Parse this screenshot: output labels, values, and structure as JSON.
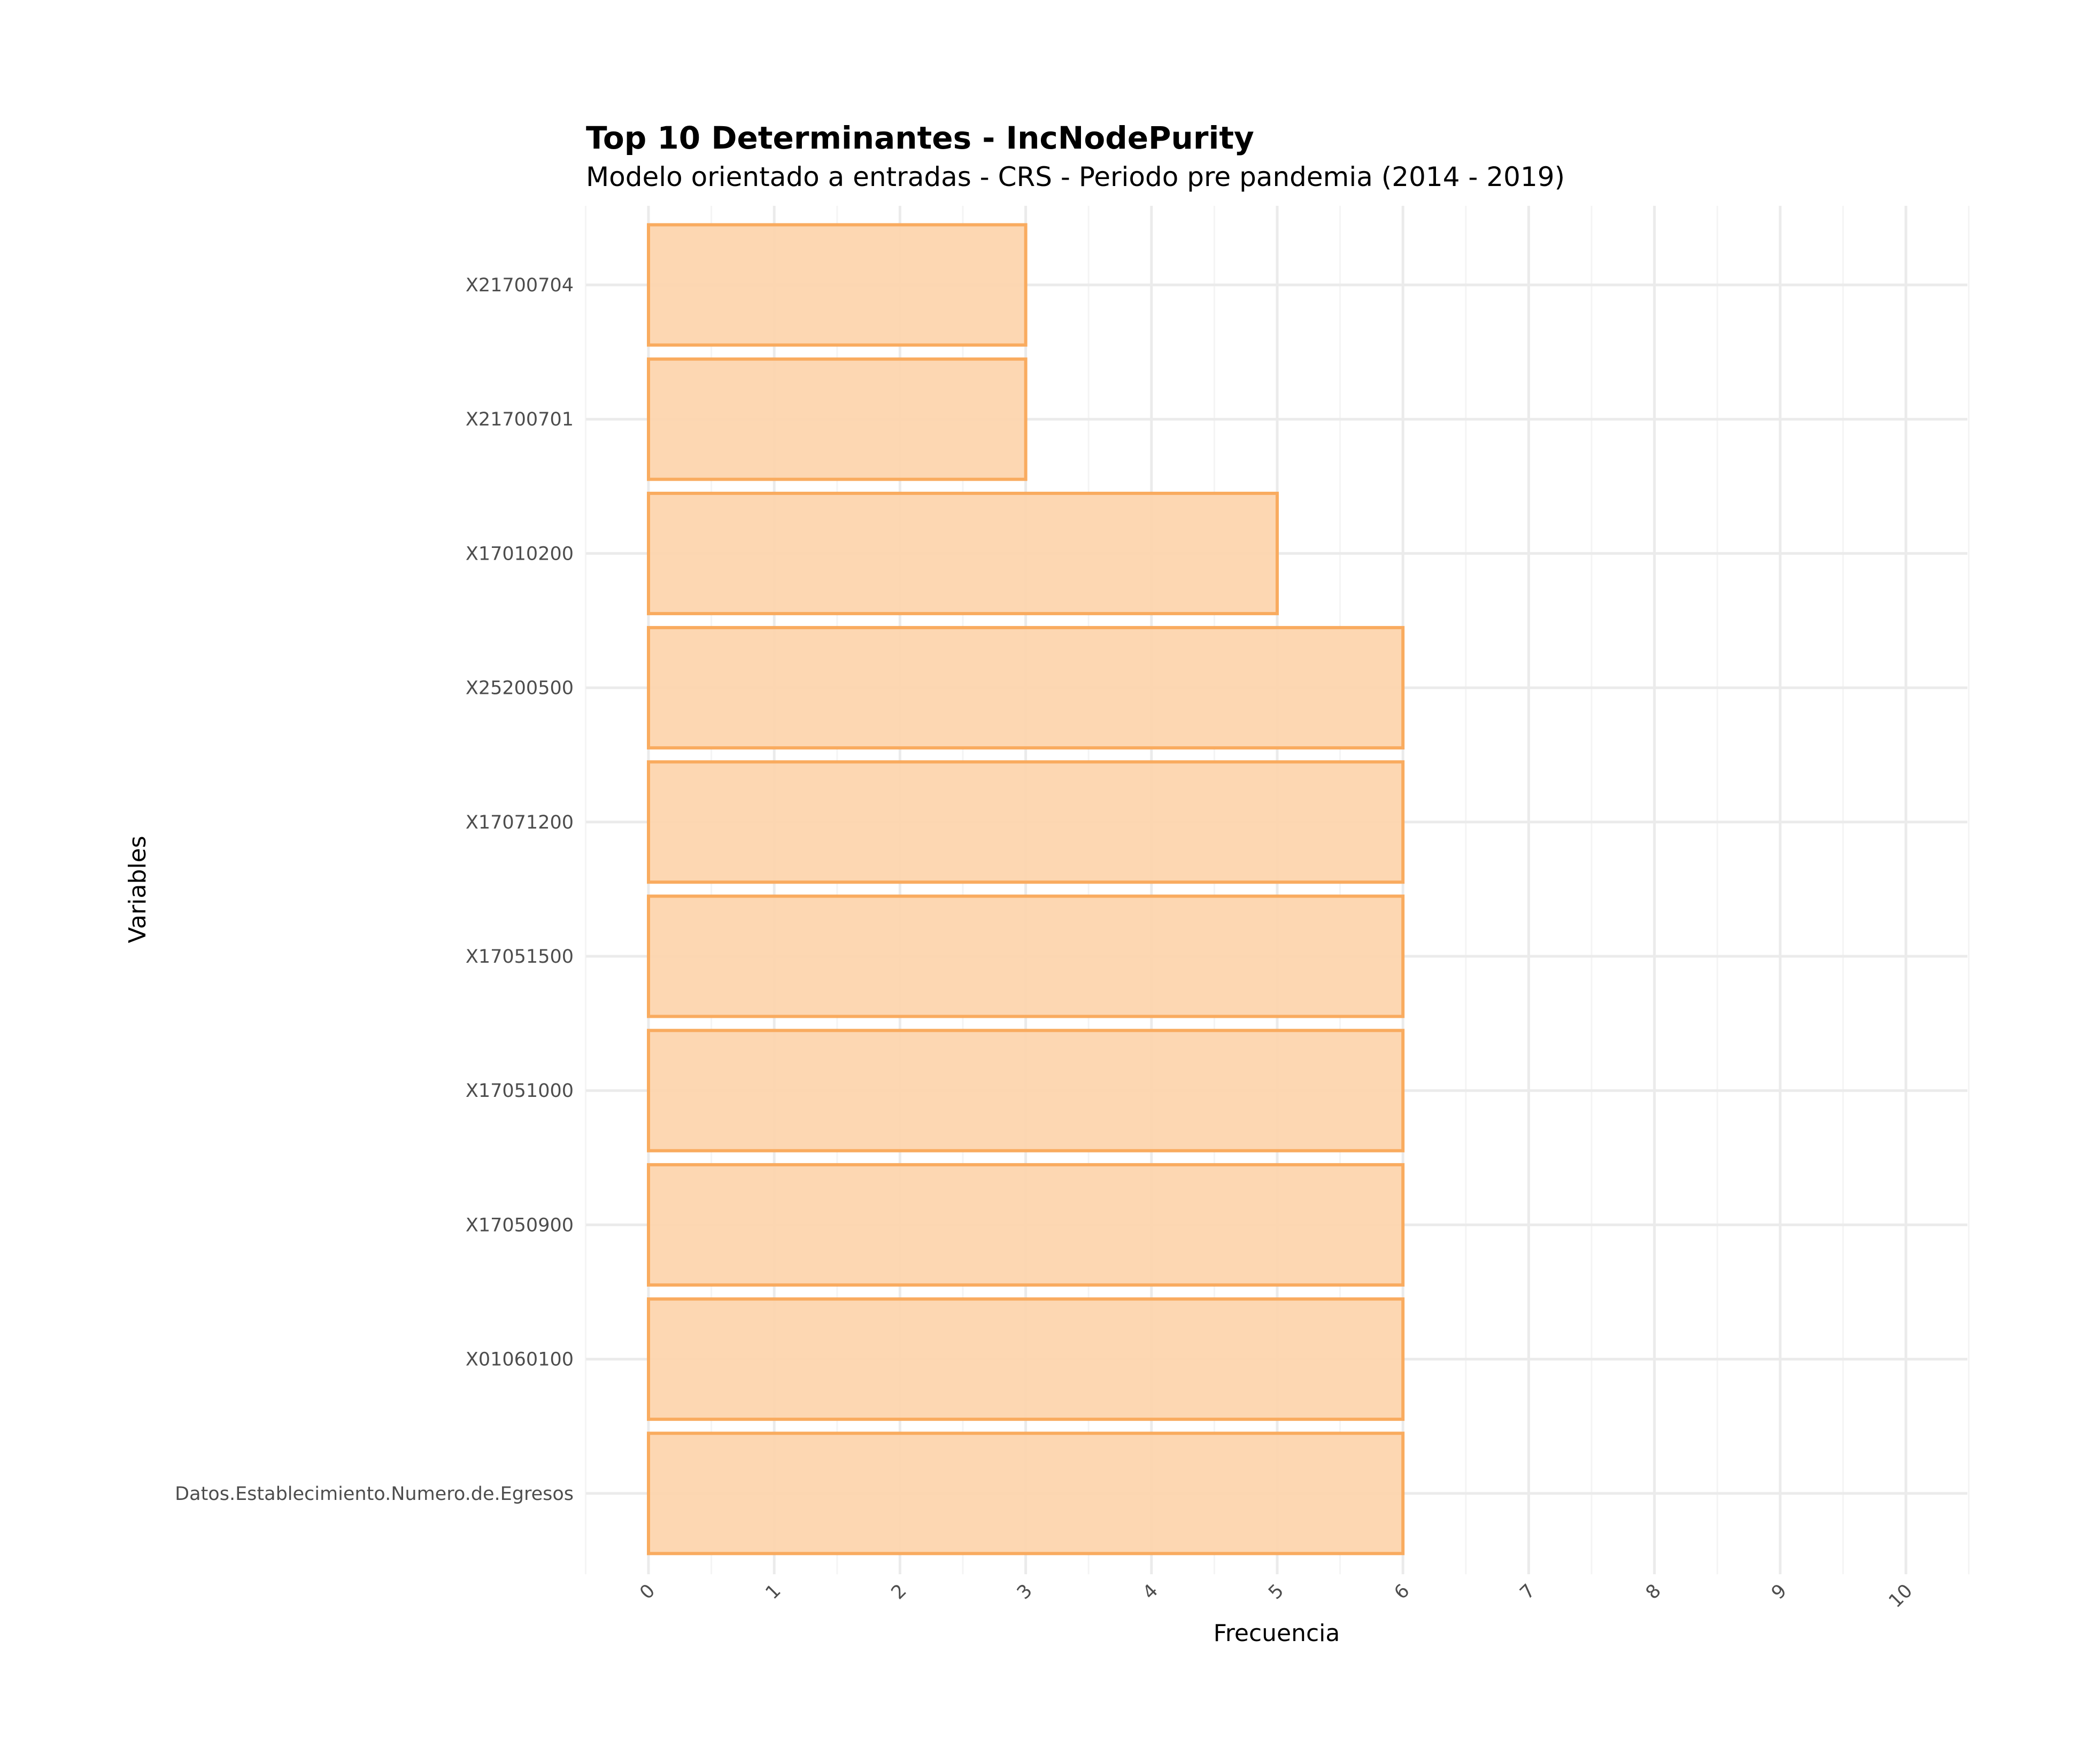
{
  "chart_data": {
    "type": "bar",
    "orientation": "horizontal",
    "title": "Top 10 Determinantes - IncNodePurity",
    "subtitle": "Modelo orientado a entradas - CRS - Periodo pre pandemia (2014 - 2019)",
    "xlabel": "Frecuencia",
    "ylabel": "Variables",
    "categories": [
      "X21700704",
      "X21700701",
      "X17010200",
      "X25200500",
      "X17071200",
      "X17051500",
      "X17051000",
      "X17050900",
      "X01060100",
      "Datos.Establecimiento.Numero.de.Egresos"
    ],
    "values": [
      3,
      3,
      5,
      6,
      6,
      6,
      6,
      6,
      6,
      6
    ],
    "xlim": [
      -0.5,
      10.5
    ],
    "xticks": [
      "0",
      "1",
      "2",
      "3",
      "4",
      "5",
      "6",
      "7",
      "8",
      "9",
      "10"
    ],
    "grid": true,
    "bar_fill": "#fdd5ae",
    "bar_stroke": "#f9ab5f"
  }
}
